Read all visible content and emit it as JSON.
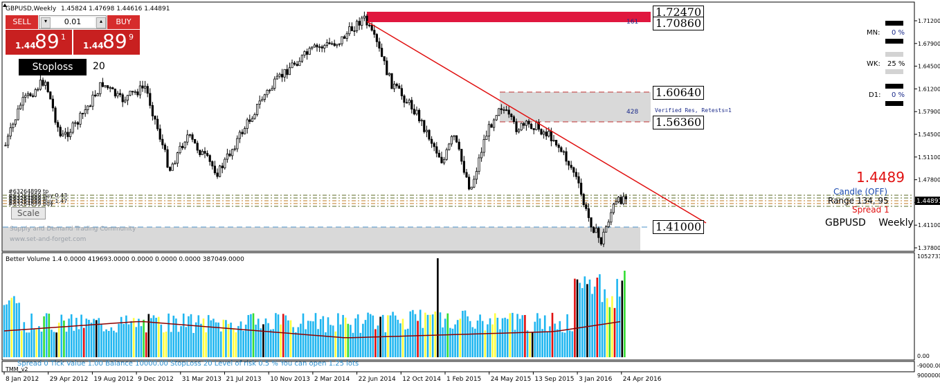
{
  "header": {
    "symbol_info": "GBPUSD,Weekly",
    "ohlc": "1.45824 1.47698 1.44616 1.44891"
  },
  "trade_panel": {
    "sell_label": "SELL",
    "buy_label": "BUY",
    "lot_value": "0.01",
    "sell_price_big": "1.44",
    "sell_price_pips": "89",
    "sell_price_frac": "1",
    "buy_price_big": "1.44",
    "buy_price_pips": "89",
    "buy_price_frac": "9"
  },
  "stoploss": {
    "label": "Stoploss",
    "value": "20"
  },
  "scale_button": "Scale",
  "watermark": {
    "line1": "Supply and Demand Trading Community",
    "line2": "www.set-and-forget.com"
  },
  "order_labels": [
    "#63264899 tp",
    "#63264899 buy 0.43",
    "#63264899 buy 1.47",
    "#63264899 sl",
    "#63264899 buy"
  ],
  "zones": {
    "top_count": "161",
    "top_box_price": "1.72470",
    "top_box_price2": "1.70860",
    "res_count": "428",
    "res_text": "Verified Res, Retests=1",
    "res_upper": "1.60640",
    "res_lower": "1.56360",
    "support_price": "1.41000"
  },
  "strength": {
    "mn_label": "MN:",
    "mn_value": "0 %",
    "wk_label": "WK:",
    "wk_value": "25 %",
    "d1_label": "D1:",
    "d1_value": "0 %"
  },
  "info": {
    "price": "1.4489",
    "candle": "Candle   (OFF)",
    "range": "Range  134, 95",
    "spread": "Spread   1",
    "pair": "GBPUSD",
    "timeframe": "Weekly"
  },
  "price_axis": {
    "labels": [
      "1.71200",
      "1.67900",
      "1.64500",
      "1.61200",
      "1.57900",
      "1.54500",
      "1.51100",
      "1.47800",
      "1.44500",
      "1.41100",
      "1.37800"
    ],
    "current": "1.44891"
  },
  "volume": {
    "title": "Better Volume 1.4 0.0000 419693.0000 0.0000 0.0000 0.0000 387049.0000",
    "axis_top": "1052731",
    "axis_bottom": "0.00",
    "axis_bottom2": "-9000.00"
  },
  "bottom_info": {
    "text": "Spread  0     Tick Value  1.00        Balance  10000.00      StopLoss  20        Level of risk  0.5 %      You can open  1.25 lots",
    "tmm": "TMM_v2",
    "axis_val": "9000000"
  },
  "time_axis": [
    "8 Jan 2012",
    "29 Apr 2012",
    "19 Aug 2012",
    "9 Dec 2012",
    "31 Mar 2013",
    "21 Jul 2013",
    "10 Nov 2013",
    "2 Mar 2014",
    "22 Jun 2014",
    "12 Oct 2014",
    "1 Feb 2015",
    "24 May 2015",
    "13 Sep 2015",
    "3 Jan 2016",
    "24 Apr 2016"
  ],
  "colors": {
    "bull": "#000000",
    "bear": "#000000",
    "trendline": "#e01010",
    "zone": "#d9d9d9",
    "sell_btn": "#d62c2c",
    "buy_btn": "#d62c2c"
  }
}
